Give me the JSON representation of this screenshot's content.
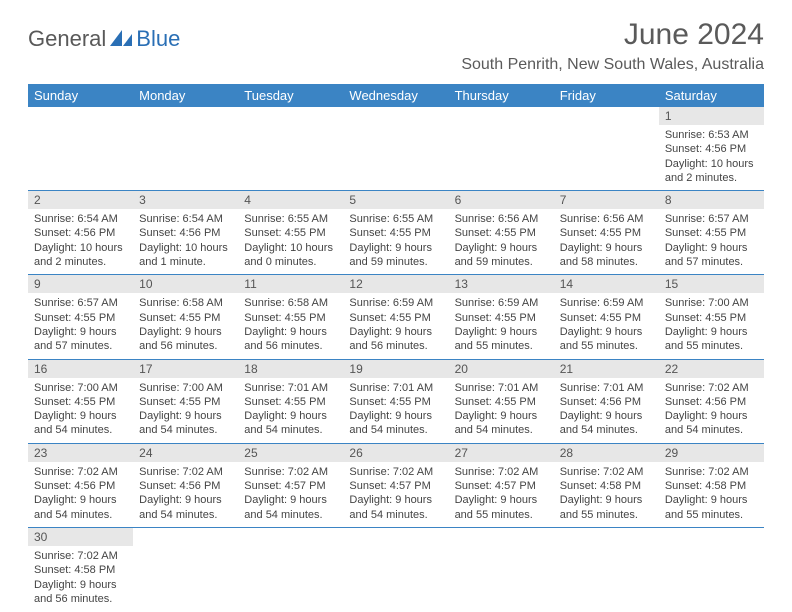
{
  "logo": {
    "text_general": "General",
    "text_blue": "Blue"
  },
  "header": {
    "month_title": "June 2024",
    "location": "South Penrith, New South Wales, Australia"
  },
  "colors": {
    "header_bg": "#3b84c4",
    "header_text": "#ffffff",
    "daynum_bg": "#e7e7e7",
    "rule": "#3b84c4",
    "body_text": "#444444"
  },
  "days_of_week": [
    "Sunday",
    "Monday",
    "Tuesday",
    "Wednesday",
    "Thursday",
    "Friday",
    "Saturday"
  ],
  "weeks": [
    [
      null,
      null,
      null,
      null,
      null,
      null,
      {
        "num": "1",
        "sunrise": "Sunrise: 6:53 AM",
        "sunset": "Sunset: 4:56 PM",
        "daylight1": "Daylight: 10 hours",
        "daylight2": "and 2 minutes."
      }
    ],
    [
      {
        "num": "2",
        "sunrise": "Sunrise: 6:54 AM",
        "sunset": "Sunset: 4:56 PM",
        "daylight1": "Daylight: 10 hours",
        "daylight2": "and 2 minutes."
      },
      {
        "num": "3",
        "sunrise": "Sunrise: 6:54 AM",
        "sunset": "Sunset: 4:56 PM",
        "daylight1": "Daylight: 10 hours",
        "daylight2": "and 1 minute."
      },
      {
        "num": "4",
        "sunrise": "Sunrise: 6:55 AM",
        "sunset": "Sunset: 4:55 PM",
        "daylight1": "Daylight: 10 hours",
        "daylight2": "and 0 minutes."
      },
      {
        "num": "5",
        "sunrise": "Sunrise: 6:55 AM",
        "sunset": "Sunset: 4:55 PM",
        "daylight1": "Daylight: 9 hours",
        "daylight2": "and 59 minutes."
      },
      {
        "num": "6",
        "sunrise": "Sunrise: 6:56 AM",
        "sunset": "Sunset: 4:55 PM",
        "daylight1": "Daylight: 9 hours",
        "daylight2": "and 59 minutes."
      },
      {
        "num": "7",
        "sunrise": "Sunrise: 6:56 AM",
        "sunset": "Sunset: 4:55 PM",
        "daylight1": "Daylight: 9 hours",
        "daylight2": "and 58 minutes."
      },
      {
        "num": "8",
        "sunrise": "Sunrise: 6:57 AM",
        "sunset": "Sunset: 4:55 PM",
        "daylight1": "Daylight: 9 hours",
        "daylight2": "and 57 minutes."
      }
    ],
    [
      {
        "num": "9",
        "sunrise": "Sunrise: 6:57 AM",
        "sunset": "Sunset: 4:55 PM",
        "daylight1": "Daylight: 9 hours",
        "daylight2": "and 57 minutes."
      },
      {
        "num": "10",
        "sunrise": "Sunrise: 6:58 AM",
        "sunset": "Sunset: 4:55 PM",
        "daylight1": "Daylight: 9 hours",
        "daylight2": "and 56 minutes."
      },
      {
        "num": "11",
        "sunrise": "Sunrise: 6:58 AM",
        "sunset": "Sunset: 4:55 PM",
        "daylight1": "Daylight: 9 hours",
        "daylight2": "and 56 minutes."
      },
      {
        "num": "12",
        "sunrise": "Sunrise: 6:59 AM",
        "sunset": "Sunset: 4:55 PM",
        "daylight1": "Daylight: 9 hours",
        "daylight2": "and 56 minutes."
      },
      {
        "num": "13",
        "sunrise": "Sunrise: 6:59 AM",
        "sunset": "Sunset: 4:55 PM",
        "daylight1": "Daylight: 9 hours",
        "daylight2": "and 55 minutes."
      },
      {
        "num": "14",
        "sunrise": "Sunrise: 6:59 AM",
        "sunset": "Sunset: 4:55 PM",
        "daylight1": "Daylight: 9 hours",
        "daylight2": "and 55 minutes."
      },
      {
        "num": "15",
        "sunrise": "Sunrise: 7:00 AM",
        "sunset": "Sunset: 4:55 PM",
        "daylight1": "Daylight: 9 hours",
        "daylight2": "and 55 minutes."
      }
    ],
    [
      {
        "num": "16",
        "sunrise": "Sunrise: 7:00 AM",
        "sunset": "Sunset: 4:55 PM",
        "daylight1": "Daylight: 9 hours",
        "daylight2": "and 54 minutes."
      },
      {
        "num": "17",
        "sunrise": "Sunrise: 7:00 AM",
        "sunset": "Sunset: 4:55 PM",
        "daylight1": "Daylight: 9 hours",
        "daylight2": "and 54 minutes."
      },
      {
        "num": "18",
        "sunrise": "Sunrise: 7:01 AM",
        "sunset": "Sunset: 4:55 PM",
        "daylight1": "Daylight: 9 hours",
        "daylight2": "and 54 minutes."
      },
      {
        "num": "19",
        "sunrise": "Sunrise: 7:01 AM",
        "sunset": "Sunset: 4:55 PM",
        "daylight1": "Daylight: 9 hours",
        "daylight2": "and 54 minutes."
      },
      {
        "num": "20",
        "sunrise": "Sunrise: 7:01 AM",
        "sunset": "Sunset: 4:55 PM",
        "daylight1": "Daylight: 9 hours",
        "daylight2": "and 54 minutes."
      },
      {
        "num": "21",
        "sunrise": "Sunrise: 7:01 AM",
        "sunset": "Sunset: 4:56 PM",
        "daylight1": "Daylight: 9 hours",
        "daylight2": "and 54 minutes."
      },
      {
        "num": "22",
        "sunrise": "Sunrise: 7:02 AM",
        "sunset": "Sunset: 4:56 PM",
        "daylight1": "Daylight: 9 hours",
        "daylight2": "and 54 minutes."
      }
    ],
    [
      {
        "num": "23",
        "sunrise": "Sunrise: 7:02 AM",
        "sunset": "Sunset: 4:56 PM",
        "daylight1": "Daylight: 9 hours",
        "daylight2": "and 54 minutes."
      },
      {
        "num": "24",
        "sunrise": "Sunrise: 7:02 AM",
        "sunset": "Sunset: 4:56 PM",
        "daylight1": "Daylight: 9 hours",
        "daylight2": "and 54 minutes."
      },
      {
        "num": "25",
        "sunrise": "Sunrise: 7:02 AM",
        "sunset": "Sunset: 4:57 PM",
        "daylight1": "Daylight: 9 hours",
        "daylight2": "and 54 minutes."
      },
      {
        "num": "26",
        "sunrise": "Sunrise: 7:02 AM",
        "sunset": "Sunset: 4:57 PM",
        "daylight1": "Daylight: 9 hours",
        "daylight2": "and 54 minutes."
      },
      {
        "num": "27",
        "sunrise": "Sunrise: 7:02 AM",
        "sunset": "Sunset: 4:57 PM",
        "daylight1": "Daylight: 9 hours",
        "daylight2": "and 55 minutes."
      },
      {
        "num": "28",
        "sunrise": "Sunrise: 7:02 AM",
        "sunset": "Sunset: 4:58 PM",
        "daylight1": "Daylight: 9 hours",
        "daylight2": "and 55 minutes."
      },
      {
        "num": "29",
        "sunrise": "Sunrise: 7:02 AM",
        "sunset": "Sunset: 4:58 PM",
        "daylight1": "Daylight: 9 hours",
        "daylight2": "and 55 minutes."
      }
    ],
    [
      {
        "num": "30",
        "sunrise": "Sunrise: 7:02 AM",
        "sunset": "Sunset: 4:58 PM",
        "daylight1": "Daylight: 9 hours",
        "daylight2": "and 56 minutes."
      },
      null,
      null,
      null,
      null,
      null,
      null
    ]
  ]
}
